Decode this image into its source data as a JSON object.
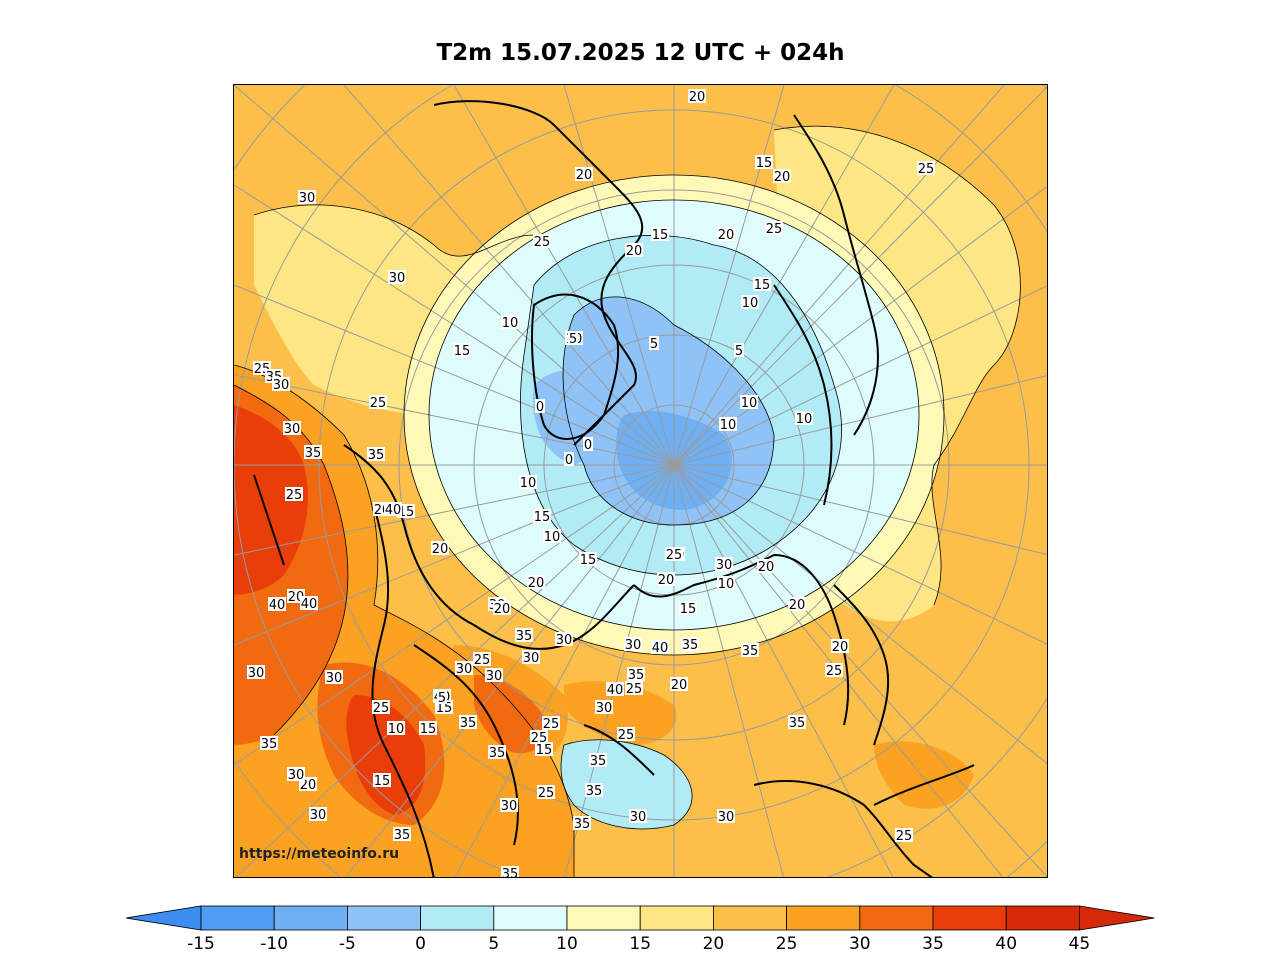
{
  "title": "T2m 15.07.2025 12 UTC + 024h",
  "credit": "https://meteoinfo.ru",
  "colorbar": {
    "levels": [
      "-15",
      "-10",
      "-5",
      "0",
      "5",
      "10",
      "15",
      "20",
      "25",
      "30",
      "35",
      "40",
      "45"
    ],
    "colors": [
      "#3d8cf0",
      "#4f9cf2",
      "#6fb0f5",
      "#8fc3f8",
      "#b1ebf6",
      "#dffcfd",
      "#fef9b6",
      "#fde784",
      "#fcc04a",
      "#fca222",
      "#f26a10",
      "#e93e0a",
      "#d42a0a"
    ],
    "under_color": "#3d8cf0",
    "over_color": "#d42a0a"
  },
  "map": {
    "projection": "polar stereographic, north pole",
    "contour_labels": [
      "25",
      "25",
      "25",
      "20",
      "20",
      "15",
      "15",
      "20",
      "25",
      "25",
      "20",
      "20",
      "15",
      "25",
      "15",
      "10",
      "10",
      "5",
      "5",
      "10",
      "10",
      "10",
      "10",
      "5",
      "0",
      "0",
      "0",
      "10",
      "15",
      "10",
      "15",
      "20",
      "20",
      "15",
      "10",
      "20",
      "20",
      "25",
      "25",
      "20",
      "20",
      "15",
      "20",
      "20",
      "30",
      "30",
      "35",
      "25",
      "20",
      "35",
      "30",
      "35",
      "35",
      "30",
      "30",
      "40",
      "40",
      "35",
      "30",
      "25",
      "35",
      "40",
      "40",
      "35",
      "30",
      "30",
      "35",
      "30",
      "25",
      "15",
      "35",
      "30",
      "20",
      "30",
      "25",
      "25",
      "35",
      "15",
      "5",
      "15",
      "10",
      "15",
      "20",
      "30",
      "30",
      "35",
      "35",
      "30",
      "25",
      "25",
      "30",
      "25",
      "40",
      "40",
      "35",
      "35",
      "35",
      "30",
      "30",
      "25",
      "35",
      "25",
      "20",
      "30",
      "30"
    ]
  }
}
